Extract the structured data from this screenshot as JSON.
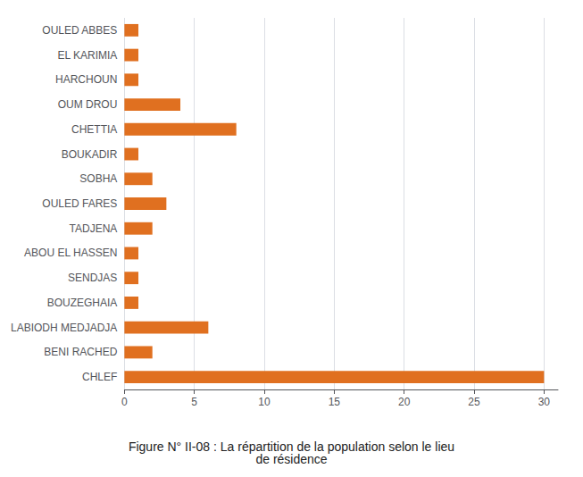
{
  "chart_data": {
    "type": "bar",
    "orientation": "horizontal",
    "title": "Figure N° II-08 : La répartition de la population selon le lieu\nde résidence",
    "categories": [
      "CHLEF",
      "BENI RACHED",
      "LABIODH MEDJADJA",
      "BOUZEGHAIA",
      "SENDJAS",
      "ABOU EL HASSEN",
      "TADJENA",
      "OULED FARES",
      "SOBHA",
      "BOUKADIR",
      "CHETTIA",
      "OUM DROU",
      "HARCHOUN",
      "EL KARIMIA",
      "OULED ABBES"
    ],
    "values": [
      30,
      2,
      6,
      1,
      1,
      1,
      2,
      3,
      2,
      1,
      8,
      4,
      1,
      1,
      1
    ],
    "color": "#E07020",
    "xlim": [
      0,
      31
    ],
    "xticks": [
      0,
      5,
      10,
      15,
      20,
      25,
      30
    ],
    "grid": true
  }
}
